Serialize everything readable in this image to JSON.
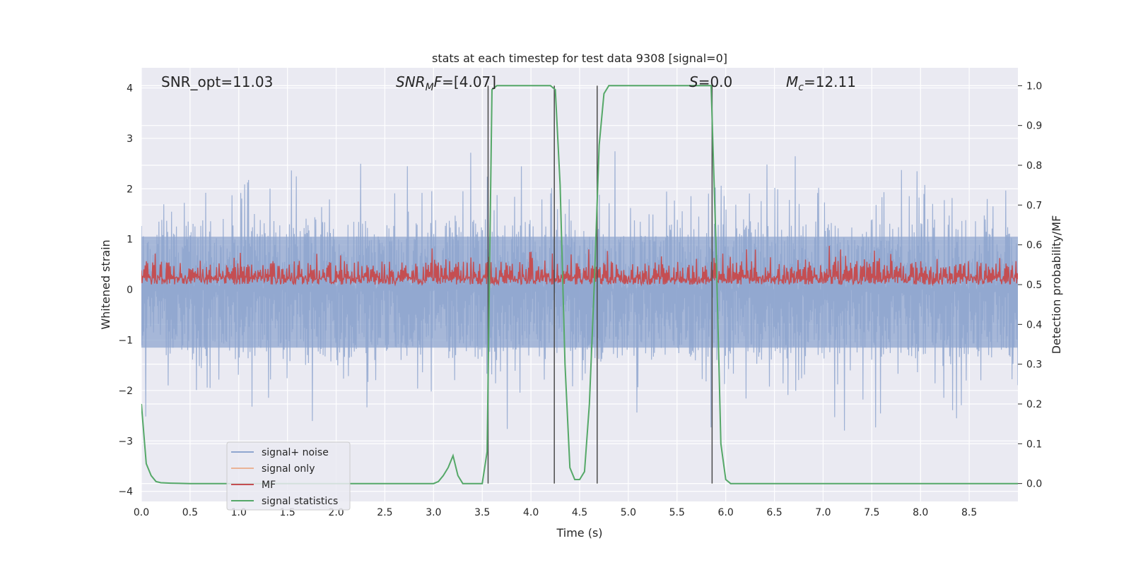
{
  "chart_data": {
    "type": "line",
    "title": "stats at each timestep for test data 9308 [signal=0]",
    "xlabel": "Time (s)",
    "ylabel_left": "Whitened strain",
    "ylabel_right": "Detection probability/MF",
    "xlim": [
      0.0,
      9.0
    ],
    "ylim_left": [
      -4.2,
      4.4
    ],
    "ylim_right": [
      -0.045,
      1.045
    ],
    "x_ticks": [
      "0.0",
      "0.5",
      "1.0",
      "1.5",
      "2.0",
      "2.5",
      "3.0",
      "3.5",
      "4.0",
      "4.5",
      "5.0",
      "5.5",
      "6.0",
      "6.5",
      "7.0",
      "7.5",
      "8.0",
      "8.5"
    ],
    "y_ticks_left": [
      "−4",
      "−3",
      "−2",
      "−1",
      "0",
      "1",
      "2",
      "3",
      "4"
    ],
    "y_ticks_right": [
      "0.0",
      "0.1",
      "0.2",
      "0.3",
      "0.4",
      "0.5",
      "0.6",
      "0.7",
      "0.8",
      "0.9",
      "1.0"
    ],
    "grid": true,
    "legend_position": "lower-left",
    "annotations": {
      "snr_opt": "SNR_opt=11.03",
      "snr_mf_name": "SNR",
      "snr_mf_sub": "M",
      "snr_mf_tail": "F",
      "snr_mf_value": "=[4.07]",
      "s_name": "S",
      "s_value": "=0.0",
      "mc_name": "M",
      "mc_sub": "c",
      "mc_value": "=12.11"
    },
    "series": [
      {
        "name": "signal+ noise",
        "color": "#8fa6cf",
        "axis": "left",
        "description": "whitened noisy strain, roughly within ±3.5 around 0"
      },
      {
        "name": "signal only",
        "color": "#eab396",
        "axis": "left",
        "values": []
      },
      {
        "name": "MF",
        "color": "#c44e52",
        "axis": "right",
        "description": "matched-filter output fluctuating between 0.5 and 0.6"
      },
      {
        "name": "signal statistics",
        "color": "#55a868",
        "axis": "right",
        "x": [
          0.0,
          0.05,
          0.1,
          0.15,
          0.2,
          0.3,
          0.5,
          1.0,
          2.0,
          3.0,
          3.05,
          3.1,
          3.15,
          3.2,
          3.25,
          3.3,
          3.4,
          3.5,
          3.55,
          3.6,
          3.65,
          4.0,
          4.2,
          4.25,
          4.3,
          4.35,
          4.4,
          4.45,
          4.5,
          4.55,
          4.6,
          4.65,
          4.7,
          4.75,
          4.8,
          4.85,
          5.0,
          5.8,
          5.85,
          5.9,
          5.95,
          6.0,
          6.05,
          7.0,
          8.0,
          9.0
        ],
        "y": [
          0.2,
          0.05,
          0.02,
          0.005,
          0.002,
          0.001,
          0.0,
          0.0,
          0.0,
          0.0,
          0.005,
          0.02,
          0.04,
          0.07,
          0.02,
          0.0,
          0.0,
          0.0,
          0.08,
          0.99,
          1.0,
          1.0,
          1.0,
          0.99,
          0.75,
          0.3,
          0.04,
          0.01,
          0.01,
          0.03,
          0.2,
          0.5,
          0.85,
          0.98,
          1.0,
          1.0,
          1.0,
          1.0,
          1.0,
          0.6,
          0.1,
          0.01,
          0.0,
          0.0,
          0.0,
          0.0
        ]
      }
    ],
    "vlines": {
      "color": "#4a4a4a",
      "x": [
        3.56,
        4.24,
        4.68,
        5.86
      ]
    }
  }
}
